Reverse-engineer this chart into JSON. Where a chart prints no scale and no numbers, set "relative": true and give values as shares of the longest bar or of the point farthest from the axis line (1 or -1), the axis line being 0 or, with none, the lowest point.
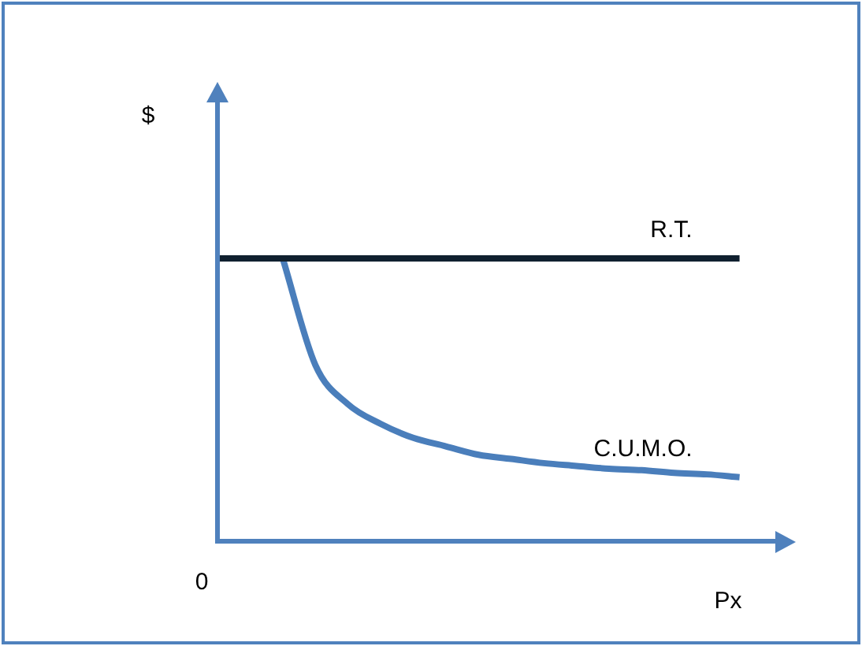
{
  "chart_data": {
    "type": "line",
    "relative": true,
    "xlabel": "Px",
    "annotations": [
      "$",
      "0"
    ],
    "categories": [
      null,
      null,
      null,
      null,
      null,
      null,
      null,
      null,
      null,
      null,
      null,
      null,
      null,
      null,
      null,
      null,
      null,
      null
    ],
    "series": [
      {
        "name": "R.T.",
        "color": "#10202f",
        "values": [
          1,
          1,
          1,
          1,
          1,
          1,
          1,
          1,
          1,
          1,
          1,
          1,
          1,
          1,
          1,
          1,
          1,
          null
        ]
      },
      {
        "name": "C.U.M.O.",
        "color": "#4a7ebb",
        "values": [
          null,
          null,
          1,
          0.62,
          0.48,
          0.41,
          0.36,
          0.33,
          0.3,
          0.285,
          0.27,
          0.26,
          0.25,
          0.245,
          0.235,
          0.23,
          0.22,
          null
        ]
      }
    ],
    "legend": false,
    "marker": "none",
    "line_style": "solid"
  }
}
